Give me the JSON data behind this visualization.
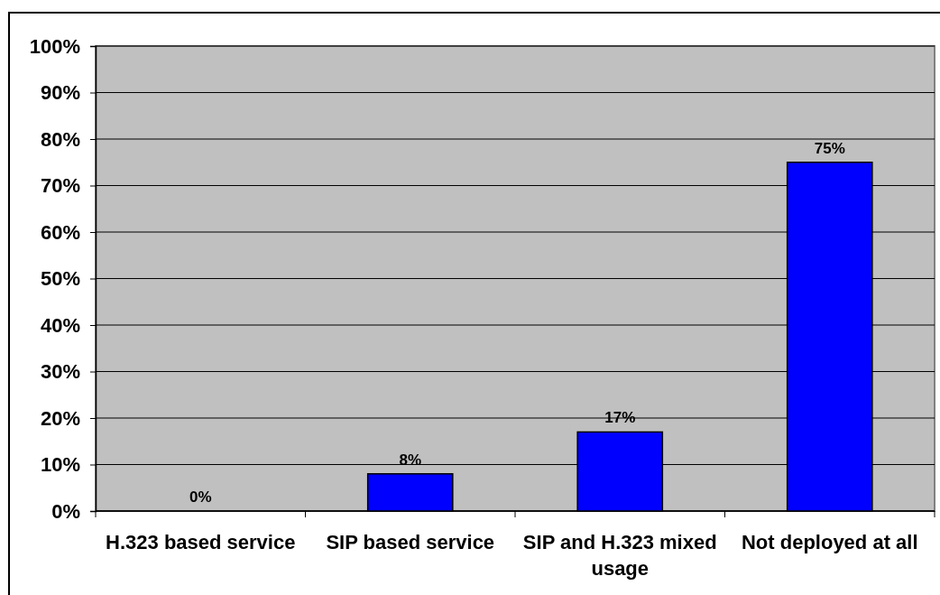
{
  "chart_data": {
    "type": "bar",
    "categories": [
      "H.323 based service",
      "SIP based service",
      "SIP and H.323 mixed usage",
      "Not deployed at all"
    ],
    "values": [
      0,
      8,
      17,
      75
    ],
    "color": "#0000ff",
    "value_labels": [
      "0%",
      "8%",
      "17%",
      "75%"
    ],
    "ylim": [
      0,
      100
    ],
    "yticks": [
      {
        "value": 0,
        "label": "0%"
      },
      {
        "value": 10,
        "label": "10%"
      },
      {
        "value": 20,
        "label": "20%"
      },
      {
        "value": 30,
        "label": "30%"
      },
      {
        "value": 40,
        "label": "40%"
      },
      {
        "value": 50,
        "label": "50%"
      },
      {
        "value": 60,
        "label": "60%"
      },
      {
        "value": 70,
        "label": "70%"
      },
      {
        "value": 80,
        "label": "80%"
      },
      {
        "value": 90,
        "label": "90%"
      },
      {
        "value": 100,
        "label": "100%"
      }
    ],
    "grid": "y"
  }
}
